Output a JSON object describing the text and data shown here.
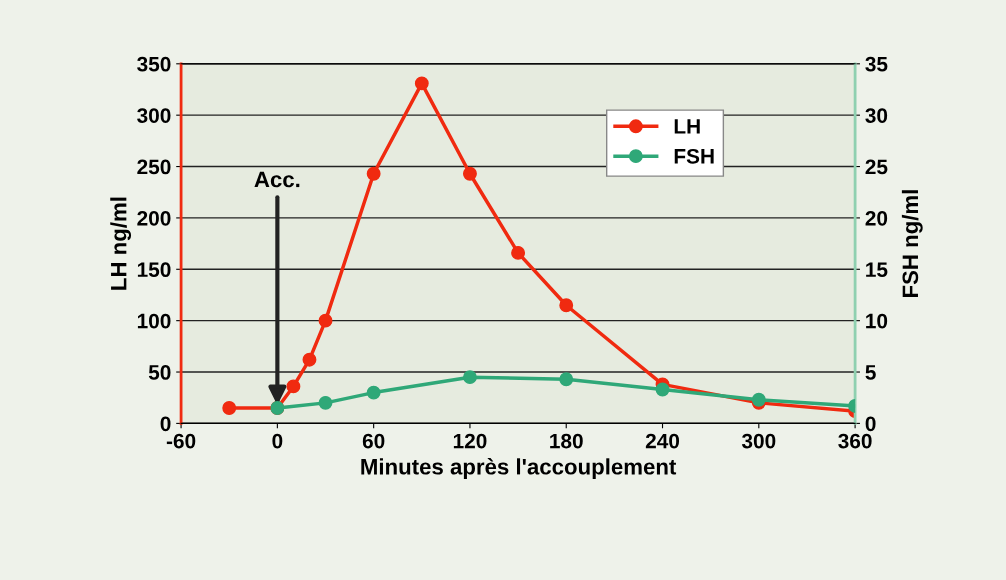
{
  "chart_data": {
    "type": "line",
    "xlabel": "Minutes après l'accouplement",
    "ylabel": "LH ng/ml",
    "y2label": "FSH ng/ml",
    "xlim": [
      -60,
      360
    ],
    "xticks": [
      -60,
      0,
      60,
      120,
      180,
      240,
      300,
      360
    ],
    "ylim": [
      0,
      350
    ],
    "yticks": [
      0,
      50,
      100,
      150,
      200,
      250,
      300,
      350
    ],
    "y2lim": [
      0,
      35
    ],
    "y2ticks": [
      0,
      5,
      10,
      15,
      20,
      25,
      30,
      35
    ],
    "grid": "y",
    "legend": "top right",
    "marker": "circle",
    "line_style": "solid",
    "series": [
      {
        "name": "LH",
        "color": "#f02a10",
        "x": [
          -30,
          0,
          10,
          20,
          30,
          60,
          90,
          120,
          150,
          180,
          240,
          300,
          360
        ],
        "values": [
          15,
          15,
          36,
          62,
          100,
          243,
          331,
          243,
          166,
          115,
          38,
          20,
          12
        ]
      },
      {
        "name": "FSH",
        "color": "#2fa878",
        "axis": "y2",
        "x": [
          0,
          30,
          60,
          120,
          180,
          240,
          300,
          360
        ],
        "values": [
          1.5,
          2,
          3,
          4.5,
          4.3,
          3.3,
          2.3,
          1.7
        ]
      }
    ],
    "annotations": [
      {
        "text": "Acc.",
        "x": 0,
        "y": 15
      }
    ]
  }
}
